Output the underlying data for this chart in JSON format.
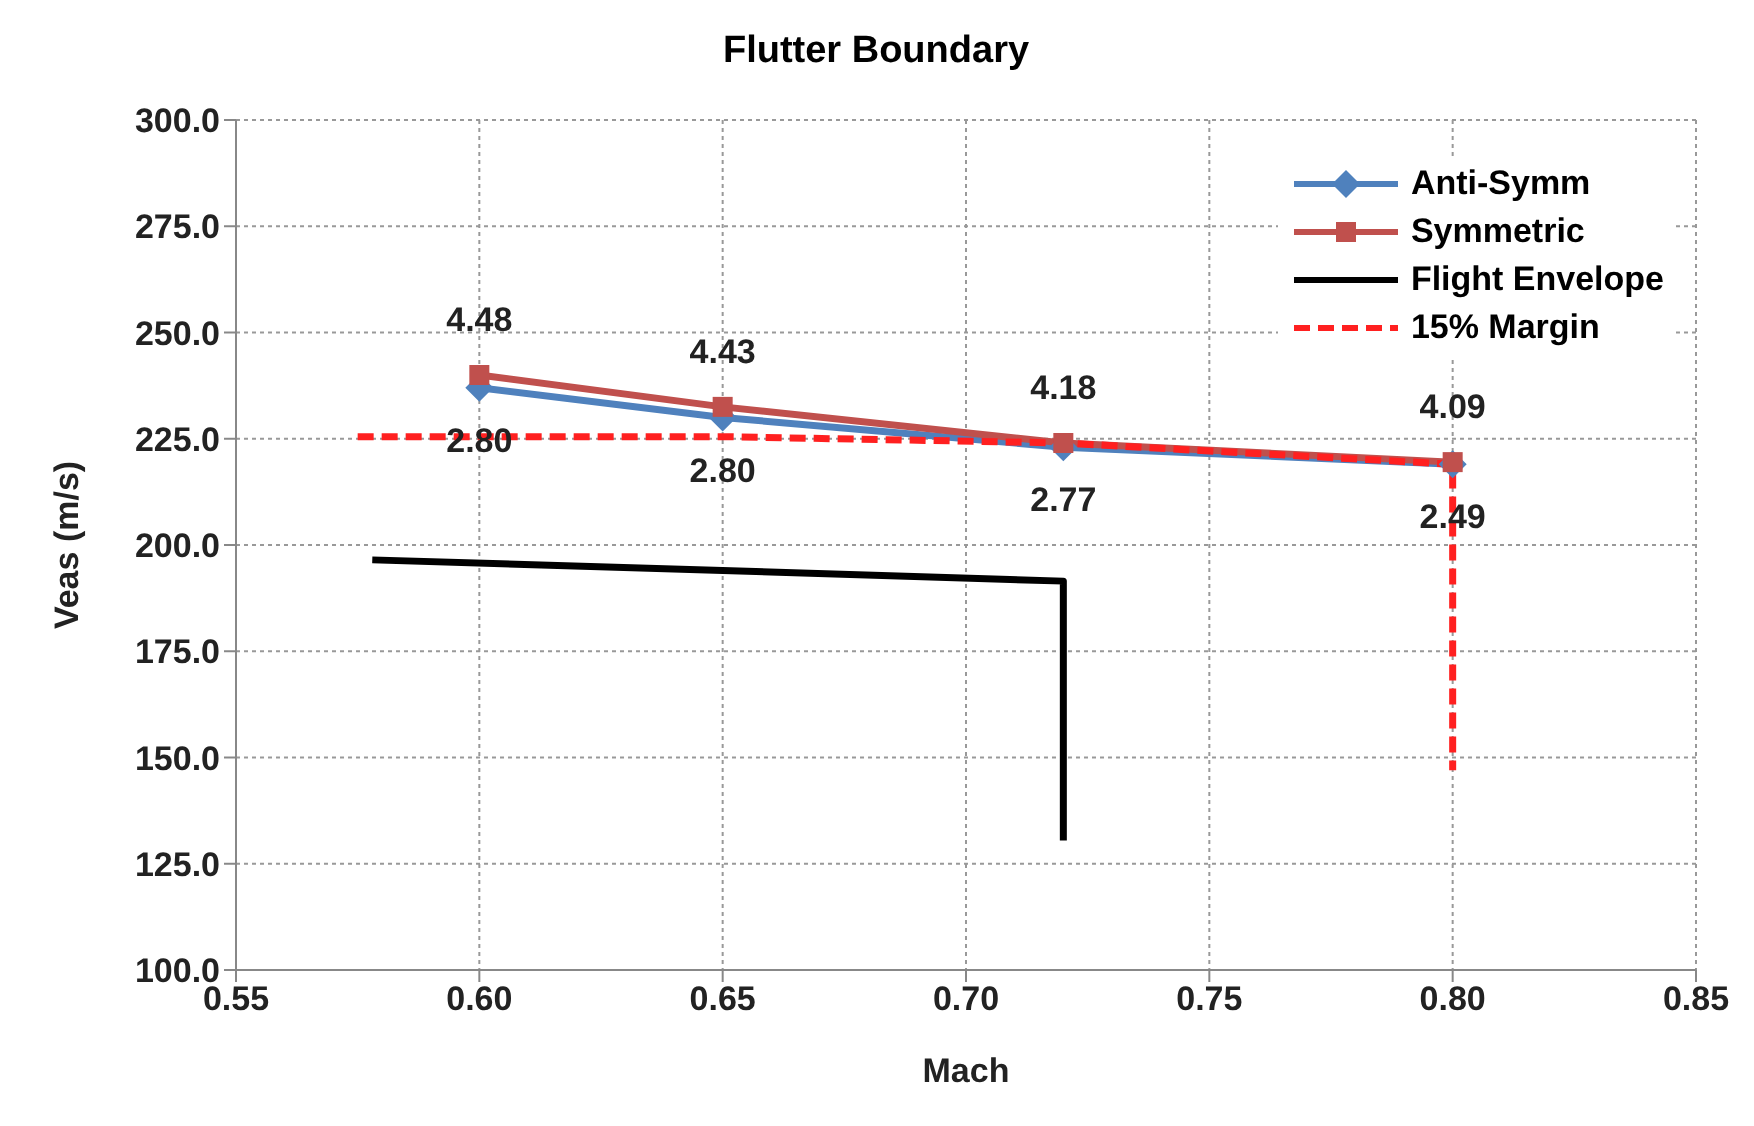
{
  "chart_data": {
    "type": "line",
    "title": "Flutter Boundary",
    "xlabel": "Mach",
    "ylabel": "Veas (m/s)",
    "xlim": [
      0.55,
      0.85
    ],
    "xticks": [
      {
        "value": 0.55,
        "label": "0.55"
      },
      {
        "value": 0.6,
        "label": "0.60"
      },
      {
        "value": 0.65,
        "label": "0.65"
      },
      {
        "value": 0.7,
        "label": "0.70"
      },
      {
        "value": 0.75,
        "label": "0.75"
      },
      {
        "value": 0.8,
        "label": "0.80"
      },
      {
        "value": 0.85,
        "label": "0.85"
      }
    ],
    "ylim": [
      100,
      300
    ],
    "yticks": [
      {
        "value": 100,
        "label": "100.0"
      },
      {
        "value": 125,
        "label": "125.0"
      },
      {
        "value": 150,
        "label": "150.0"
      },
      {
        "value": 175,
        "label": "175.0"
      },
      {
        "value": 200,
        "label": "200.0"
      },
      {
        "value": 225,
        "label": "225.0"
      },
      {
        "value": 250,
        "label": "250.0"
      },
      {
        "value": 275,
        "label": "275.0"
      },
      {
        "value": 300,
        "label": "300.0"
      }
    ],
    "grid": true,
    "legend": "top right",
    "series": [
      {
        "name": "Anti-Symm",
        "color": "#4f81bd",
        "marker": "diamond",
        "line_style": "solid",
        "x": [
          0.6,
          0.65,
          0.72,
          0.8
        ],
        "values": [
          237,
          230,
          223,
          219
        ]
      },
      {
        "name": "Symmetric",
        "color": "#c0504d",
        "marker": "square",
        "line_style": "solid",
        "x": [
          0.6,
          0.65,
          0.72,
          0.8
        ],
        "values": [
          240,
          232.5,
          224,
          219.5
        ]
      },
      {
        "name": "Flight Envelope",
        "color": "#000000",
        "marker": "none",
        "line_style": "solid",
        "x": [
          0.578,
          0.65,
          0.72,
          0.72
        ],
        "values": [
          196.5,
          194,
          191.5,
          130.5
        ]
      },
      {
        "name": "15% Margin",
        "color": "#ff2020",
        "marker": "none",
        "line_style": "dashed",
        "x": [
          0.575,
          0.65,
          0.72,
          0.8,
          0.8
        ],
        "values": [
          225.5,
          225.5,
          224,
          219,
          147
        ]
      }
    ],
    "annotations": [
      {
        "text": "4.48",
        "x": 0.6,
        "y": 240
      },
      {
        "text": "4.43",
        "x": 0.65,
        "y": 232.5
      },
      {
        "text": "4.18",
        "x": 0.72,
        "y": 224
      },
      {
        "text": "4.09",
        "x": 0.8,
        "y": 219.5
      },
      {
        "text": "2.80",
        "x": 0.6,
        "y": 237
      },
      {
        "text": "2.80",
        "x": 0.65,
        "y": 230
      },
      {
        "text": "2.77",
        "x": 0.72,
        "y": 223
      },
      {
        "text": "2.49",
        "x": 0.8,
        "y": 219
      }
    ]
  }
}
